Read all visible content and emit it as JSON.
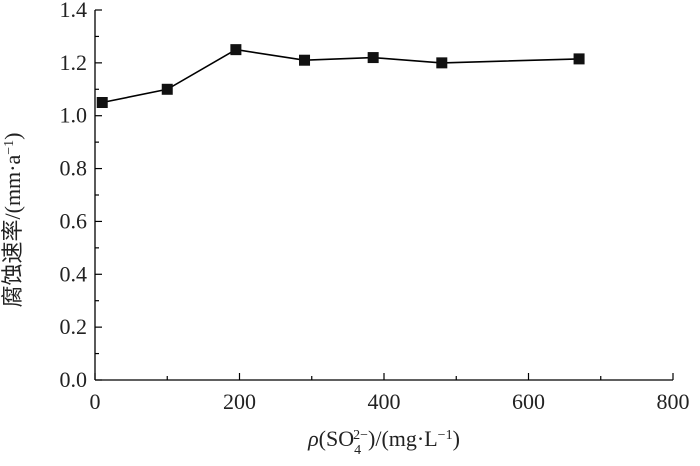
{
  "chart_data": {
    "type": "line",
    "title": "",
    "xlabel": {
      "rho": "ρ",
      "open_paren": "(SO",
      "sub": "4",
      "sup": "2−",
      "rest": ")/(mg·L",
      "unit_sup": "−1",
      "close": ")"
    },
    "ylabel": {
      "main": "腐蚀速率/(mm·a",
      "sup": "−1",
      "close": ")"
    },
    "xlim": [
      0,
      800
    ],
    "ylim": [
      0.0,
      1.4
    ],
    "xticks": [
      0,
      200,
      400,
      600,
      800
    ],
    "xtick_labels": [
      "0",
      "200",
      "400",
      "600",
      "800"
    ],
    "yticks": [
      0.0,
      0.2,
      0.4,
      0.6,
      0.8,
      1.0,
      1.2,
      1.4
    ],
    "ytick_labels": [
      "0.0",
      "0.2",
      "0.4",
      "0.6",
      "0.8",
      "1.0",
      "1.2",
      "1.4"
    ],
    "grid": false,
    "legend": "none",
    "marker": "square",
    "color": "#000000",
    "series": [
      {
        "x": [
          10,
          100,
          195,
          290,
          385,
          480,
          670
        ],
        "y": [
          1.05,
          1.1,
          1.25,
          1.21,
          1.22,
          1.2,
          1.215
        ]
      }
    ]
  }
}
